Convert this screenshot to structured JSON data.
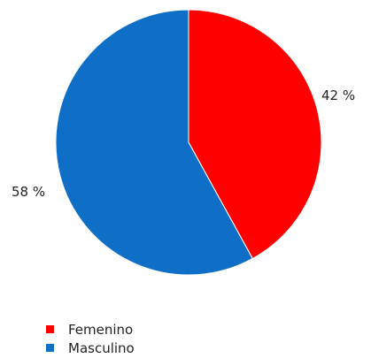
{
  "chart_data": {
    "type": "pie",
    "slices": [
      {
        "name": "Femenino",
        "value": 42,
        "label": "42 %",
        "color": "#ff0000"
      },
      {
        "name": "Masculino",
        "value": 58,
        "label": "58 %",
        "color": "#0f6fc6"
      }
    ],
    "start_angle_deg": 0,
    "direction": "clockwise",
    "legend_position": "bottom-left"
  },
  "legend": {
    "items": [
      {
        "label": "Femenino",
        "color": "#ff0000"
      },
      {
        "label": "Masculino",
        "color": "#0f6fc6"
      }
    ]
  }
}
